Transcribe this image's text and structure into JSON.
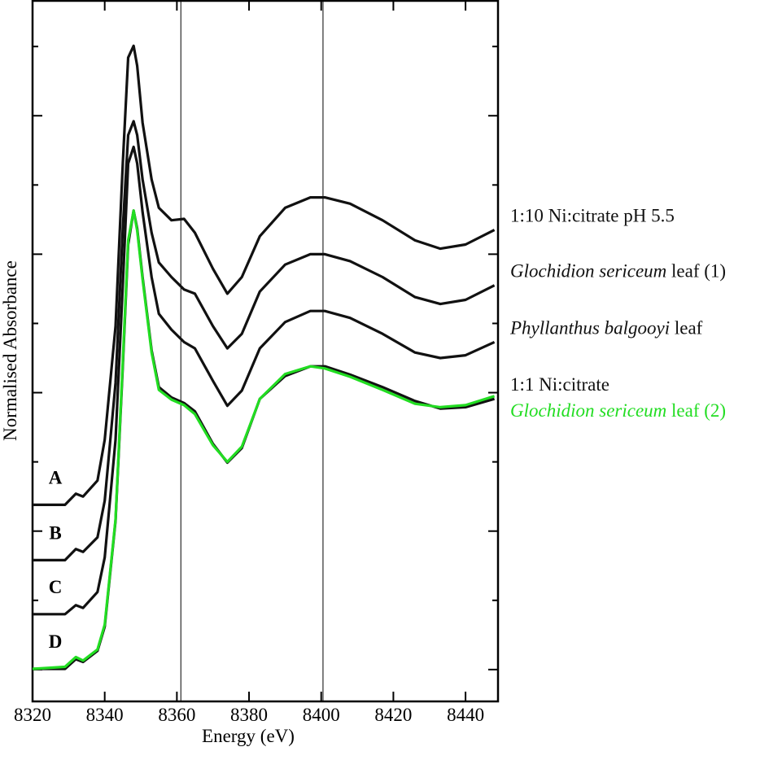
{
  "chart_data": {
    "type": "line",
    "x_label": "Energy (eV)",
    "y_label": "Normalised Absorbance",
    "xlim": [
      8320,
      8449
    ],
    "xticks": [
      8320,
      8340,
      8360,
      8380,
      8400,
      8420,
      8440
    ],
    "ylim": [
      -0.46,
      9.66
    ],
    "yticks": [
      0,
      1,
      2,
      3,
      4,
      5,
      6,
      7,
      8,
      9
    ],
    "vlines": [
      8361.1,
      8400.5
    ],
    "name_style": "italic-genus-species",
    "x": [
      8320,
      8329,
      8332,
      8334,
      8338,
      8340,
      8343,
      8345,
      8346.5,
      8348,
      8349,
      8350.5,
      8353,
      8355,
      8358.5,
      8362,
      8365,
      8370,
      8374,
      8378,
      8383,
      8390,
      8397,
      8401,
      8408,
      8417,
      8426,
      8433,
      8440,
      8448
    ],
    "series": [
      {
        "name": "1:10 Ni:citrate pH 5.5",
        "curve_label": "A",
        "color": "#111111",
        "values": [
          2.38,
          2.38,
          2.54,
          2.5,
          2.73,
          3.32,
          4.96,
          7.31,
          8.84,
          9.01,
          8.72,
          7.9,
          7.08,
          6.67,
          6.49,
          6.51,
          6.31,
          5.79,
          5.43,
          5.67,
          6.26,
          6.67,
          6.82,
          6.82,
          6.73,
          6.49,
          6.2,
          6.08,
          6.14,
          6.35
        ]
      },
      {
        "name": "Glochidion sericeum leaf (1)",
        "curve_label": "B",
        "color": "#111111",
        "values": [
          1.58,
          1.58,
          1.74,
          1.7,
          1.91,
          2.44,
          4.14,
          6.37,
          7.72,
          7.92,
          7.72,
          7.08,
          6.31,
          5.88,
          5.67,
          5.49,
          5.43,
          4.96,
          4.64,
          4.85,
          5.46,
          5.85,
          6.0,
          6.0,
          5.9,
          5.67,
          5.38,
          5.28,
          5.34,
          5.55
        ]
      },
      {
        "name": "Phyllanthus balgooyi leaf",
        "curve_label": "C",
        "color": "#111111",
        "values": [
          0.8,
          0.8,
          0.93,
          0.89,
          1.12,
          1.62,
          3.32,
          5.55,
          7.31,
          7.55,
          7.31,
          6.61,
          5.67,
          5.14,
          4.91,
          4.73,
          4.64,
          4.17,
          3.81,
          4.03,
          4.64,
          5.02,
          5.18,
          5.18,
          5.08,
          4.85,
          4.58,
          4.5,
          4.54,
          4.73
        ]
      },
      {
        "name": "1:1 Ni:citrate",
        "curve_label": "D",
        "color": "#111111",
        "values": [
          0.01,
          0.01,
          0.15,
          0.11,
          0.27,
          0.62,
          2.15,
          4.38,
          6.14,
          6.63,
          6.37,
          5.67,
          4.61,
          4.08,
          3.93,
          3.85,
          3.73,
          3.26,
          2.99,
          3.2,
          3.91,
          4.24,
          4.38,
          4.38,
          4.26,
          4.08,
          3.88,
          3.77,
          3.79,
          3.91
        ]
      },
      {
        "name": "Glochidion sericeum leaf (2)",
        "color": "#22dd22",
        "values": [
          0.01,
          0.04,
          0.18,
          0.13,
          0.29,
          0.65,
          2.17,
          4.44,
          6.2,
          6.63,
          6.34,
          5.64,
          4.58,
          4.04,
          3.9,
          3.82,
          3.69,
          3.24,
          3.0,
          3.22,
          3.91,
          4.27,
          4.38,
          4.35,
          4.23,
          4.04,
          3.84,
          3.79,
          3.82,
          3.95
        ]
      }
    ]
  }
}
